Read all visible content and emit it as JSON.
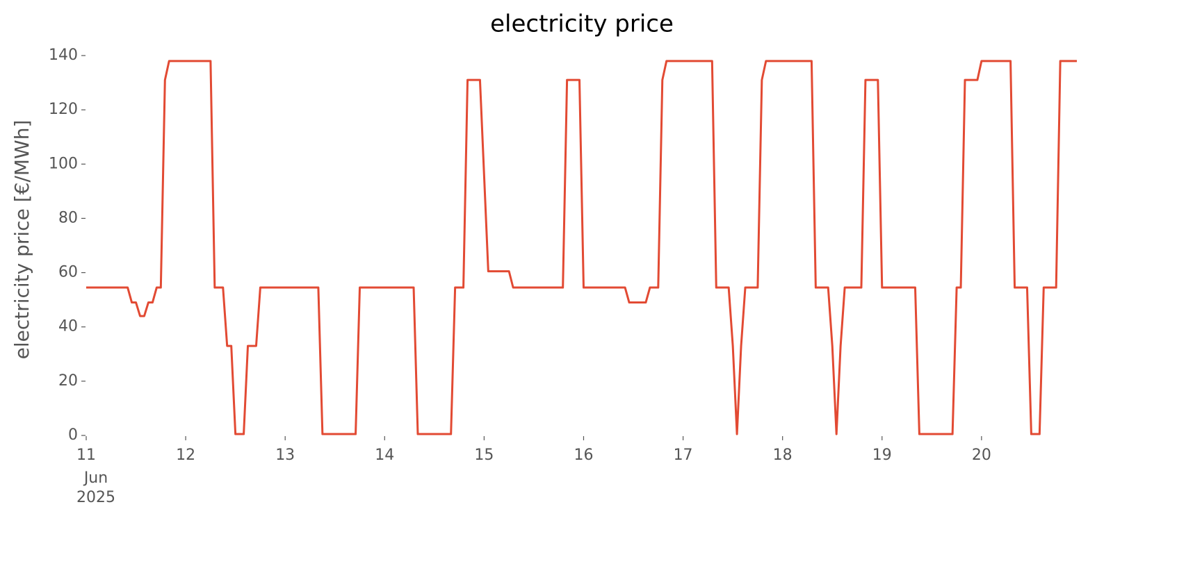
{
  "chart_data": {
    "type": "line",
    "title": "electricity price",
    "y_label": "electricity price [€/MWh]",
    "x_tick_sublabels": [
      "Jun",
      "2025"
    ],
    "series": [
      {
        "color": "#e24a33",
        "x": [
          0,
          10,
          11,
          12,
          13,
          14,
          15,
          16,
          17,
          18,
          19,
          20,
          30,
          31,
          33,
          34,
          35,
          36,
          38,
          39,
          41,
          42,
          56,
          57,
          65,
          66,
          79,
          80,
          88,
          89,
          91,
          92,
          95,
          97,
          102,
          103,
          115,
          116,
          119,
          120,
          130,
          131,
          135,
          136,
          138,
          139,
          140,
          151,
          152,
          155,
          156,
          157,
          158,
          159,
          162,
          163,
          164,
          175,
          176,
          179,
          180,
          181,
          182,
          183,
          187,
          188,
          191,
          192,
          200,
          201,
          209,
          210,
          211,
          212,
          215,
          216,
          223,
          224,
          227,
          228,
          230,
          231,
          234,
          235,
          239
        ],
        "values": [
          54.5,
          54.5,
          49,
          49,
          44,
          44,
          49,
          49,
          54.5,
          54.5,
          131,
          138,
          138,
          54.5,
          54.5,
          33,
          33,
          0.5,
          0.5,
          33,
          33,
          54.5,
          54.5,
          0.5,
          0.5,
          54.5,
          54.5,
          0.5,
          0.5,
          54.5,
          54.5,
          131,
          131,
          60.5,
          60.5,
          54.5,
          54.5,
          131,
          131,
          54.5,
          54.5,
          49,
          49,
          54.5,
          54.5,
          131,
          138,
          138,
          54.5,
          54.5,
          33,
          0.5,
          33,
          54.5,
          54.5,
          131,
          138,
          138,
          54.5,
          54.5,
          33,
          0.5,
          33,
          54.5,
          54.5,
          131,
          131,
          54.5,
          54.5,
          0.5,
          0.5,
          54.5,
          54.5,
          131,
          131,
          138,
          138,
          54.5,
          54.5,
          0.5,
          0.5,
          54.5,
          54.5,
          138,
          138
        ]
      }
    ],
    "xlim": [
      0,
      239
    ],
    "xticks": [
      {
        "value": 0,
        "label": "11"
      },
      {
        "value": 24,
        "label": "12"
      },
      {
        "value": 48,
        "label": "13"
      },
      {
        "value": 72,
        "label": "14"
      },
      {
        "value": 96,
        "label": "15"
      },
      {
        "value": 120,
        "label": "16"
      },
      {
        "value": 144,
        "label": "17"
      },
      {
        "value": 168,
        "label": "18"
      },
      {
        "value": 192,
        "label": "19"
      },
      {
        "value": 216,
        "label": "20"
      }
    ],
    "ylim": [
      0,
      140
    ],
    "yticks": [
      0,
      20,
      40,
      60,
      80,
      100,
      120,
      140
    ],
    "grid": false
  }
}
